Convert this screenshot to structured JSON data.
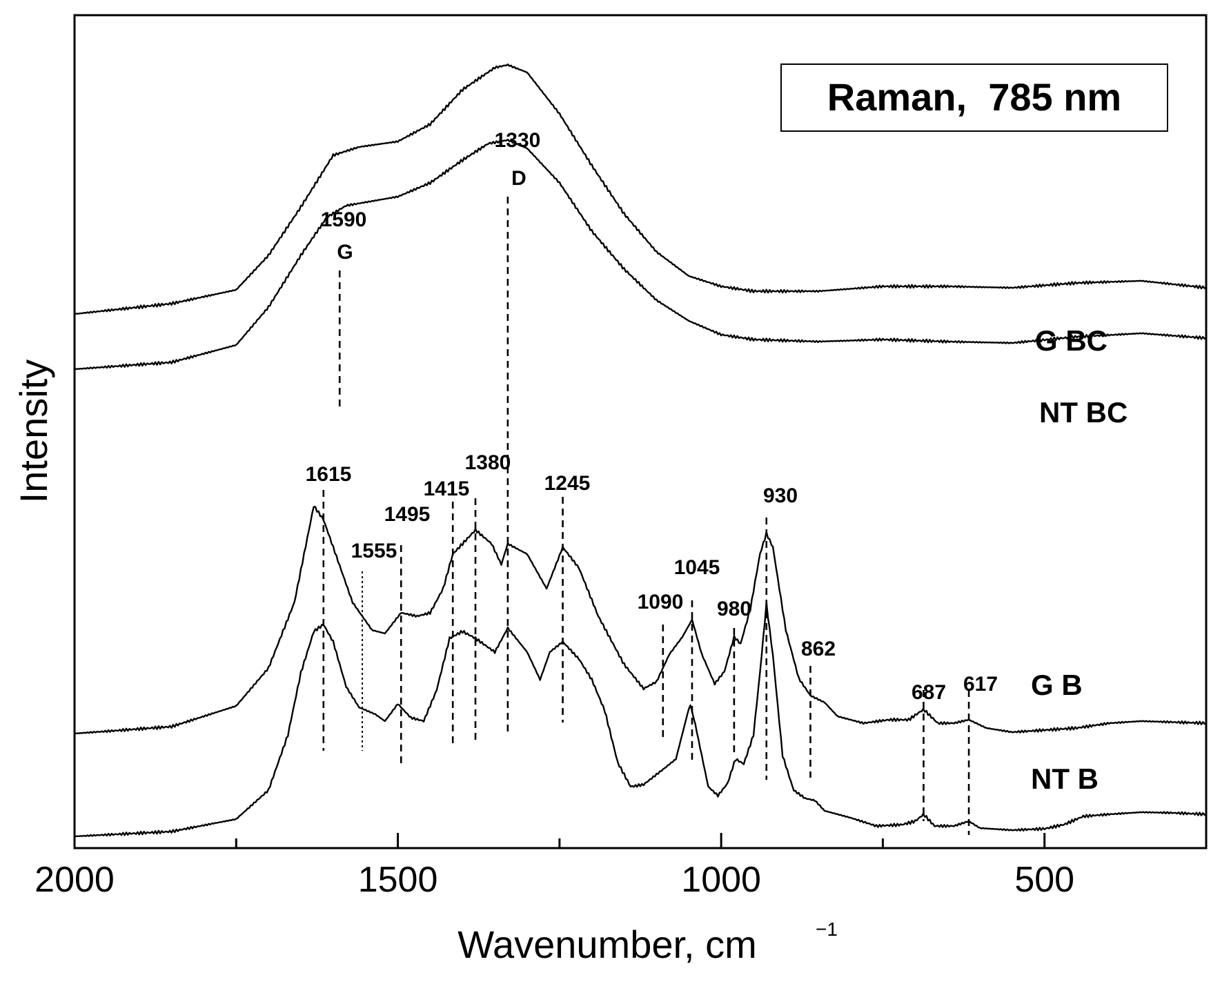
{
  "chart_data": {
    "type": "line",
    "title": "Raman,  785 nm",
    "xlabel": "Wavenumber, cm",
    "xlabel_superscript": "−1",
    "ylabel": "Intensity",
    "xlim": [
      2000,
      250
    ],
    "ylim": [
      0,
      1
    ],
    "x_reversed": true,
    "x_ticks": [
      2000,
      1500,
      1000,
      500
    ],
    "x_minor_ticks": [
      1750,
      1250,
      750
    ],
    "grid": false,
    "legend": "top-right",
    "series": [
      {
        "name": "G BC",
        "points": [
          [
            2000,
            0.545
          ],
          [
            1850,
            0.56
          ],
          [
            1750,
            0.58
          ],
          [
            1700,
            0.63
          ],
          [
            1650,
            0.7
          ],
          [
            1600,
            0.775
          ],
          [
            1560,
            0.787
          ],
          [
            1500,
            0.795
          ],
          [
            1450,
            0.82
          ],
          [
            1400,
            0.87
          ],
          [
            1350,
            0.902
          ],
          [
            1330,
            0.906
          ],
          [
            1300,
            0.895
          ],
          [
            1250,
            0.835
          ],
          [
            1200,
            0.76
          ],
          [
            1150,
            0.69
          ],
          [
            1100,
            0.635
          ],
          [
            1050,
            0.6
          ],
          [
            1000,
            0.585
          ],
          [
            950,
            0.578
          ],
          [
            850,
            0.578
          ],
          [
            750,
            0.585
          ],
          [
            650,
            0.585
          ],
          [
            550,
            0.583
          ],
          [
            450,
            0.59
          ],
          [
            350,
            0.593
          ],
          [
            250,
            0.583
          ]
        ]
      },
      {
        "name": "NT BC",
        "points": [
          [
            2000,
            0.465
          ],
          [
            1850,
            0.475
          ],
          [
            1750,
            0.5
          ],
          [
            1700,
            0.555
          ],
          [
            1650,
            0.63
          ],
          [
            1610,
            0.685
          ],
          [
            1580,
            0.702
          ],
          [
            1500,
            0.715
          ],
          [
            1450,
            0.735
          ],
          [
            1400,
            0.768
          ],
          [
            1360,
            0.792
          ],
          [
            1330,
            0.797
          ],
          [
            1300,
            0.785
          ],
          [
            1250,
            0.735
          ],
          [
            1200,
            0.665
          ],
          [
            1150,
            0.61
          ],
          [
            1100,
            0.565
          ],
          [
            1050,
            0.535
          ],
          [
            1000,
            0.515
          ],
          [
            950,
            0.508
          ],
          [
            850,
            0.505
          ],
          [
            750,
            0.508
          ],
          [
            650,
            0.505
          ],
          [
            550,
            0.503
          ],
          [
            450,
            0.512
          ],
          [
            350,
            0.517
          ],
          [
            250,
            0.51
          ]
        ]
      },
      {
        "name": "G B",
        "points": [
          [
            2000,
            0.15
          ],
          [
            1850,
            0.16
          ],
          [
            1750,
            0.19
          ],
          [
            1700,
            0.245
          ],
          [
            1660,
            0.34
          ],
          [
            1630,
            0.48
          ],
          [
            1615,
            0.46
          ],
          [
            1600,
            0.42
          ],
          [
            1570,
            0.34
          ],
          [
            1540,
            0.3
          ],
          [
            1520,
            0.295
          ],
          [
            1495,
            0.325
          ],
          [
            1470,
            0.32
          ],
          [
            1450,
            0.325
          ],
          [
            1430,
            0.36
          ],
          [
            1415,
            0.41
          ],
          [
            1380,
            0.445
          ],
          [
            1355,
            0.425
          ],
          [
            1340,
            0.395
          ],
          [
            1330,
            0.425
          ],
          [
            1300,
            0.41
          ],
          [
            1270,
            0.36
          ],
          [
            1245,
            0.42
          ],
          [
            1220,
            0.39
          ],
          [
            1190,
            0.32
          ],
          [
            1150,
            0.25
          ],
          [
            1120,
            0.215
          ],
          [
            1100,
            0.225
          ],
          [
            1080,
            0.265
          ],
          [
            1060,
            0.29
          ],
          [
            1045,
            0.315
          ],
          [
            1030,
            0.265
          ],
          [
            1010,
            0.222
          ],
          [
            995,
            0.24
          ],
          [
            980,
            0.29
          ],
          [
            970,
            0.28
          ],
          [
            955,
            0.33
          ],
          [
            940,
            0.41
          ],
          [
            930,
            0.44
          ],
          [
            920,
            0.42
          ],
          [
            900,
            0.3
          ],
          [
            880,
            0.23
          ],
          [
            862,
            0.205
          ],
          [
            840,
            0.195
          ],
          [
            820,
            0.175
          ],
          [
            780,
            0.165
          ],
          [
            740,
            0.17
          ],
          [
            710,
            0.17
          ],
          [
            687,
            0.185
          ],
          [
            665,
            0.165
          ],
          [
            640,
            0.165
          ],
          [
            617,
            0.17
          ],
          [
            590,
            0.158
          ],
          [
            550,
            0.152
          ],
          [
            500,
            0.155
          ],
          [
            450,
            0.158
          ],
          [
            400,
            0.165
          ],
          [
            350,
            0.168
          ],
          [
            250,
            0.165
          ]
        ]
      },
      {
        "name": "NT B",
        "points": [
          [
            2000,
            0.003
          ],
          [
            1850,
            0.01
          ],
          [
            1750,
            0.028
          ],
          [
            1700,
            0.07
          ],
          [
            1670,
            0.15
          ],
          [
            1650,
            0.24
          ],
          [
            1630,
            0.3
          ],
          [
            1615,
            0.31
          ],
          [
            1600,
            0.285
          ],
          [
            1580,
            0.22
          ],
          [
            1560,
            0.19
          ],
          [
            1535,
            0.18
          ],
          [
            1520,
            0.17
          ],
          [
            1500,
            0.195
          ],
          [
            1480,
            0.175
          ],
          [
            1460,
            0.17
          ],
          [
            1440,
            0.215
          ],
          [
            1420,
            0.29
          ],
          [
            1400,
            0.3
          ],
          [
            1380,
            0.29
          ],
          [
            1350,
            0.27
          ],
          [
            1330,
            0.305
          ],
          [
            1300,
            0.27
          ],
          [
            1280,
            0.23
          ],
          [
            1265,
            0.27
          ],
          [
            1245,
            0.285
          ],
          [
            1220,
            0.26
          ],
          [
            1200,
            0.23
          ],
          [
            1180,
            0.185
          ],
          [
            1160,
            0.11
          ],
          [
            1140,
            0.075
          ],
          [
            1120,
            0.078
          ],
          [
            1090,
            0.1
          ],
          [
            1070,
            0.115
          ],
          [
            1055,
            0.17
          ],
          [
            1048,
            0.195
          ],
          [
            1040,
            0.165
          ],
          [
            1020,
            0.075
          ],
          [
            1005,
            0.062
          ],
          [
            990,
            0.08
          ],
          [
            978,
            0.115
          ],
          [
            965,
            0.108
          ],
          [
            950,
            0.15
          ],
          [
            940,
            0.24
          ],
          [
            930,
            0.34
          ],
          [
            920,
            0.265
          ],
          [
            905,
            0.12
          ],
          [
            888,
            0.07
          ],
          [
            870,
            0.058
          ],
          [
            855,
            0.055
          ],
          [
            840,
            0.04
          ],
          [
            800,
            0.03
          ],
          [
            760,
            0.018
          ],
          [
            720,
            0.02
          ],
          [
            700,
            0.025
          ],
          [
            687,
            0.035
          ],
          [
            670,
            0.018
          ],
          [
            640,
            0.018
          ],
          [
            617,
            0.025
          ],
          [
            600,
            0.015
          ],
          [
            550,
            0.012
          ],
          [
            500,
            0.014
          ],
          [
            470,
            0.02
          ],
          [
            440,
            0.032
          ],
          [
            400,
            0.035
          ],
          [
            350,
            0.038
          ],
          [
            300,
            0.037
          ],
          [
            250,
            0.035
          ]
        ]
      }
    ],
    "markers": [
      {
        "x": 1615,
        "label": "1615",
        "style": "dashed"
      },
      {
        "x": 1590,
        "label": "1590",
        "sublabel": "G",
        "style": "dashed"
      },
      {
        "x": 1555,
        "label": "1555",
        "style": "dotted"
      },
      {
        "x": 1495,
        "label": "1495",
        "style": "dashed"
      },
      {
        "x": 1415,
        "label": "1415",
        "style": "dashed"
      },
      {
        "x": 1380,
        "label": "1380",
        "style": "dashed"
      },
      {
        "x": 1330,
        "label": "1330",
        "sublabel": "D",
        "style": "dashed"
      },
      {
        "x": 1245,
        "label": "1245",
        "style": "dashed"
      },
      {
        "x": 1090,
        "label": "1090",
        "style": "dashed"
      },
      {
        "x": 1045,
        "label": "1045",
        "style": "dashed"
      },
      {
        "x": 980,
        "label": "980",
        "style": "dashed"
      },
      {
        "x": 930,
        "label": "930",
        "style": "dashed"
      },
      {
        "x": 862,
        "label": "862",
        "style": "dashed"
      },
      {
        "x": 687,
        "label": "687",
        "style": "dashed"
      },
      {
        "x": 617,
        "label": "617",
        "style": "dashed"
      }
    ]
  }
}
